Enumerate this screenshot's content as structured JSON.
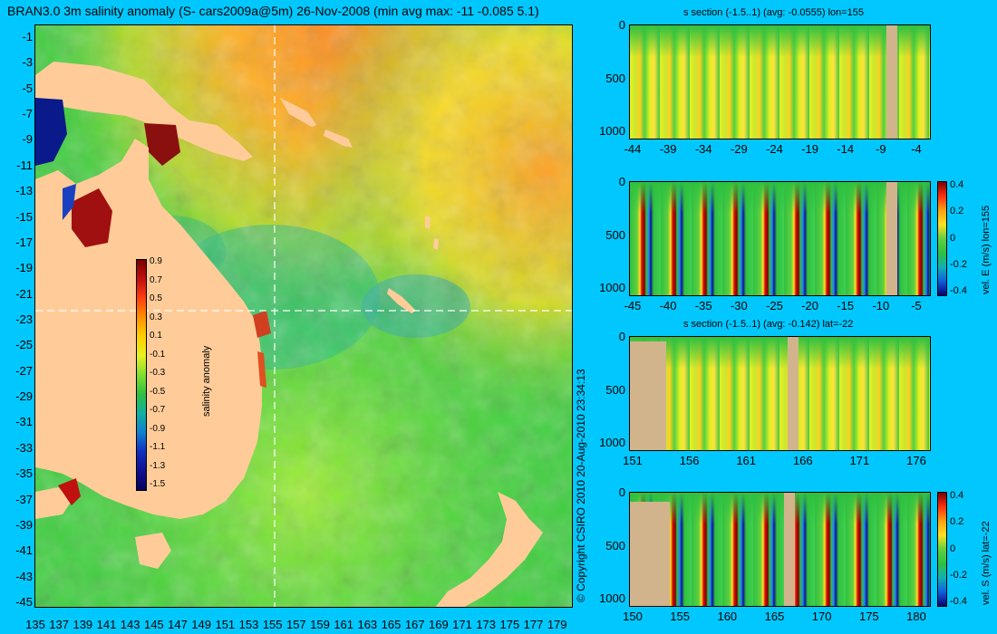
{
  "main_title": "BRAN3.0 3m salinity anomaly (S- cars2009a@5m) 26-Nov-2008 (min avg max: -11 -0.085 5.1)",
  "copyright": "© Copyright CSIRO 2010   20-Aug-2010 23:34:13",
  "map": {
    "lat_labels": [
      "-1",
      "-3",
      "-5",
      "-7",
      "-9",
      "-11",
      "-13",
      "-15",
      "-17",
      "-19",
      "-21",
      "-23",
      "-25",
      "-27",
      "-29",
      "-31",
      "-33",
      "-35",
      "-37",
      "-39",
      "-41",
      "-43",
      "-45"
    ],
    "lon_labels": [
      "135",
      "137",
      "139",
      "141",
      "143",
      "145",
      "147",
      "149",
      "151",
      "153",
      "155",
      "157",
      "159",
      "161",
      "163",
      "165",
      "167",
      "169",
      "171",
      "173",
      "175",
      "177",
      "179"
    ],
    "colorbar": {
      "label": "salinity anomaly",
      "ticks": [
        "0.9",
        "0.7",
        "0.5",
        "0.3",
        "0.1",
        "-0.1",
        "-0.3",
        "-0.5",
        "-0.7",
        "-0.9",
        "-1.1",
        "-1.3",
        "-1.5"
      ]
    }
  },
  "sections": [
    {
      "title": "s section (-1.5..1) (avg: -0.0555) lon=155",
      "x_labels": [
        "-44",
        "-39",
        "-34",
        "-29",
        "-24",
        "-19",
        "-14",
        "-9",
        "-4"
      ],
      "y_labels": [
        "0",
        "500",
        "1000"
      ],
      "side_label": ""
    },
    {
      "title": "",
      "x_labels": [
        "-45",
        "-40",
        "-35",
        "-30",
        "-25",
        "-20",
        "-15",
        "-10",
        "-5"
      ],
      "y_labels": [
        "0",
        "500",
        "1000"
      ],
      "side_label": "vel. E (m/s) lon=155",
      "cb_ticks": [
        "0.4",
        "0.2",
        "0",
        "-0.2",
        "-0.4"
      ]
    },
    {
      "title": "s section (-1.5..1) (avg: -0.142) lat=-22",
      "x_labels": [
        "151",
        "156",
        "161",
        "166",
        "171",
        "176"
      ],
      "y_labels": [
        "0",
        "500",
        "1000"
      ],
      "side_label": ""
    },
    {
      "title": "",
      "x_labels": [
        "150",
        "155",
        "160",
        "165",
        "170",
        "175",
        "180"
      ],
      "y_labels": [
        "0",
        "500",
        "1000"
      ],
      "side_label": "vel. S (m/s) lat=-22",
      "cb_ticks": [
        "0.4",
        "0.2",
        "0",
        "-0.2",
        "-0.4"
      ]
    }
  ],
  "colors": {
    "background": "#00c8ff",
    "land": "#ffcc99",
    "section_land": "#d2b48c"
  }
}
